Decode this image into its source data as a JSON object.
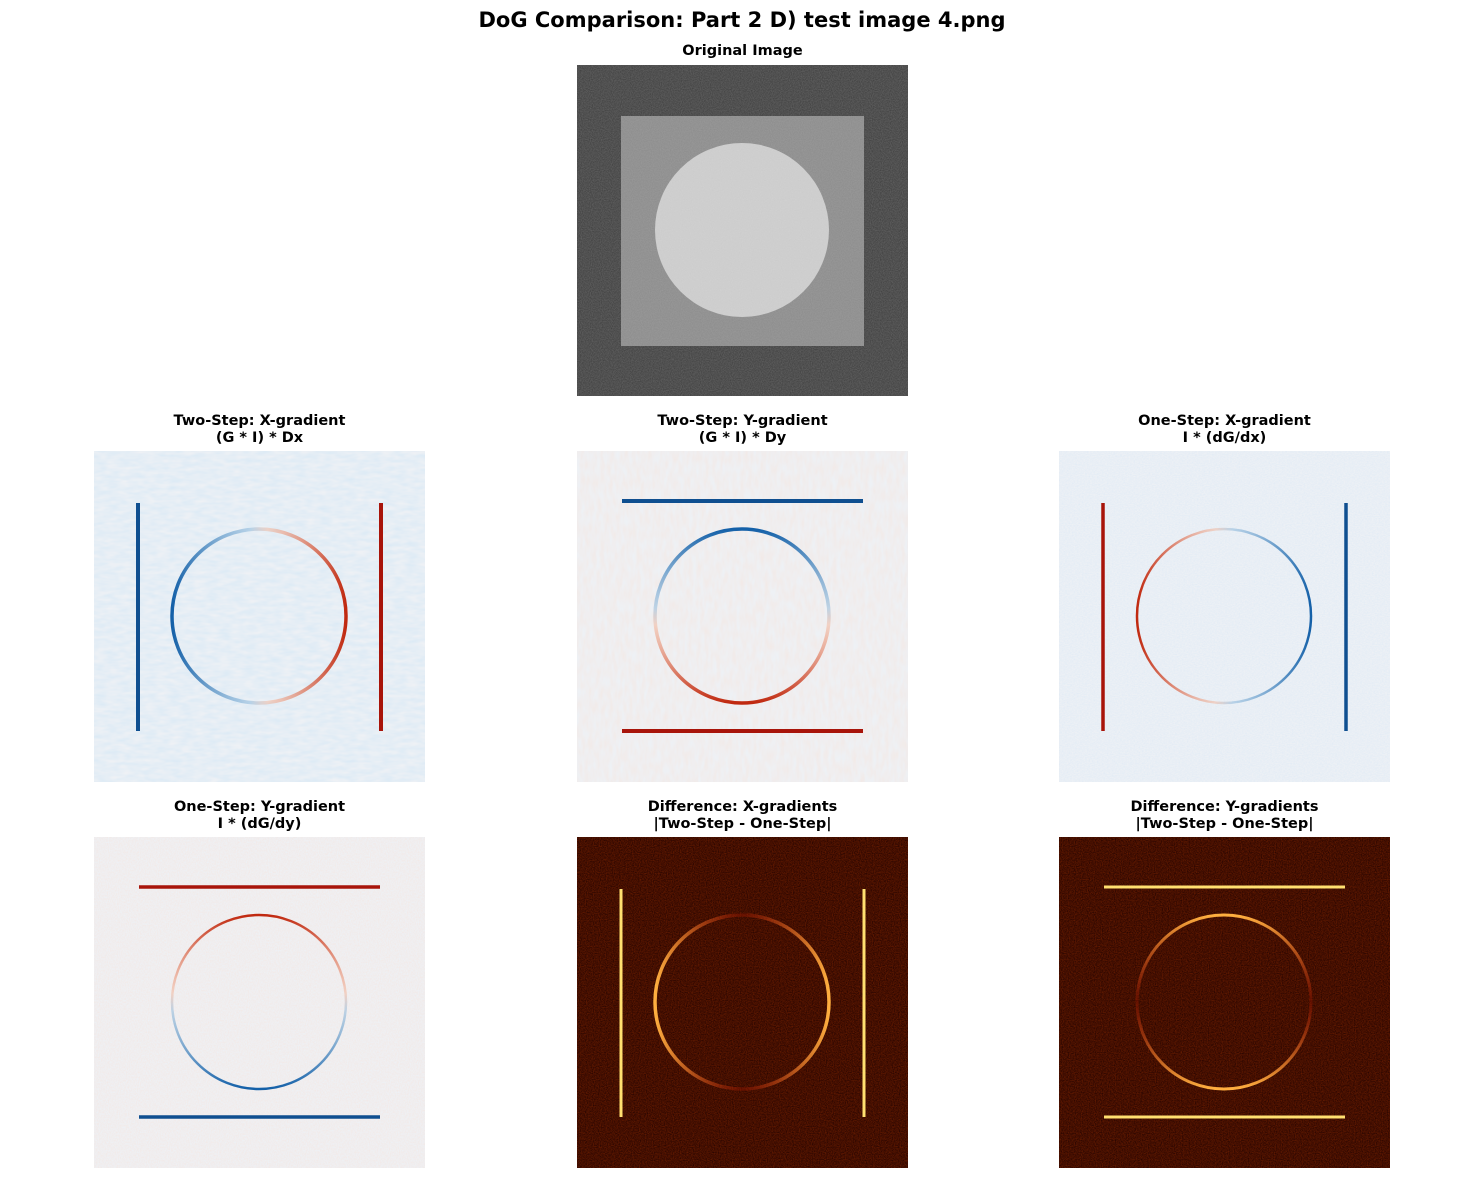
{
  "figure": {
    "title": "DoG Comparison: Part 2 D) test image 4.png"
  },
  "panels": [
    {
      "key": "original",
      "title_line1": "Original Image",
      "title_line2": "",
      "colormap": "gray"
    },
    {
      "key": "two_step_x",
      "title_line1": "Two-Step: X-gradient",
      "title_line2": "(G * I) * Dx",
      "colormap": "RdBu"
    },
    {
      "key": "two_step_y",
      "title_line1": "Two-Step: Y-gradient",
      "title_line2": "(G * I) * Dy",
      "colormap": "RdBu"
    },
    {
      "key": "one_step_x",
      "title_line1": "One-Step: X-gradient",
      "title_line2": "I * (dG/dx)",
      "colormap": "RdBu"
    },
    {
      "key": "one_step_y",
      "title_line1": "One-Step: Y-gradient",
      "title_line2": "I * (dG/dy)",
      "colormap": "RdBu"
    },
    {
      "key": "diff_x",
      "title_line1": "Difference: X-gradients",
      "title_line2": "|Two-Step - One-Step|",
      "colormap": "hot"
    },
    {
      "key": "diff_y",
      "title_line1": "Difference: Y-gradients",
      "title_line2": "|Two-Step - One-Step|",
      "colormap": "hot"
    }
  ],
  "colors": {
    "gray_background": "#3a3a3a",
    "gray_square": "#8a8a8a",
    "gray_disk": "#d2d2d2",
    "rdbu_background": "#eef1f5",
    "rdbu_red": "#c0280f",
    "rdbu_blue": "#1460a8",
    "hot_background": "#2a0500",
    "hot_line": "#ffe070",
    "hot_glow": "#ff5010"
  }
}
